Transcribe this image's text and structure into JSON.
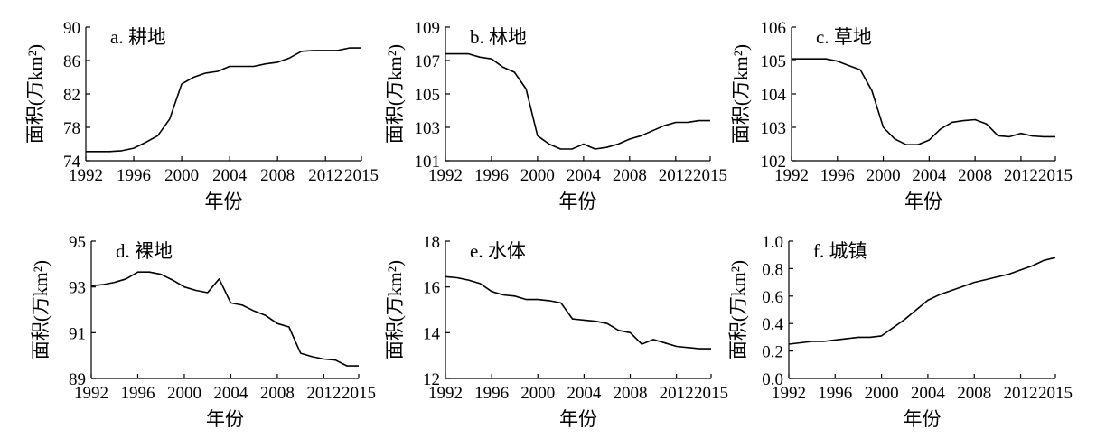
{
  "chart_data": [
    {
      "type": "line",
      "title": "a. 耕地",
      "xlabel": "年份",
      "ylabel": "面积(万km²)",
      "xlim": [
        1992,
        2015
      ],
      "ylim": [
        74,
        90
      ],
      "xticks": [
        "1992",
        "1996",
        "2000",
        "2004",
        "2008",
        "2012",
        "2015"
      ],
      "yticks": [
        "74",
        "78",
        "82",
        "86",
        "90"
      ],
      "series": [
        {
          "x": [
            1992,
            1993,
            1994,
            1995,
            1996,
            1997,
            1998,
            1999,
            2000,
            2001,
            2002,
            2003,
            2004,
            2005,
            2006,
            2007,
            2008,
            2009,
            2010,
            2011,
            2012,
            2013,
            2014,
            2015
          ],
          "values": [
            75.1,
            75.1,
            75.1,
            75.2,
            75.5,
            76.2,
            77.0,
            79.0,
            83.2,
            84.0,
            84.5,
            84.7,
            85.3,
            85.3,
            85.3,
            85.6,
            85.8,
            86.3,
            87.1,
            87.2,
            87.2,
            87.2,
            87.5,
            87.5
          ]
        }
      ]
    },
    {
      "type": "line",
      "title": "b. 林地",
      "xlabel": "年份",
      "ylabel": "面积(万km²)",
      "xlim": [
        1992,
        2015
      ],
      "ylim": [
        101,
        109
      ],
      "xticks": [
        "1992",
        "1996",
        "2000",
        "2004",
        "2008",
        "2012",
        "2015"
      ],
      "yticks": [
        "101",
        "103",
        "105",
        "107",
        "109"
      ],
      "series": [
        {
          "x": [
            1992,
            1993,
            1994,
            1995,
            1996,
            1997,
            1998,
            1999,
            2000,
            2001,
            2002,
            2003,
            2004,
            2005,
            2006,
            2007,
            2008,
            2009,
            2010,
            2011,
            2012,
            2013,
            2014,
            2015
          ],
          "values": [
            107.4,
            107.4,
            107.4,
            107.2,
            107.1,
            106.6,
            106.3,
            105.3,
            102.5,
            102.0,
            101.7,
            101.7,
            102.0,
            101.7,
            101.8,
            102.0,
            102.3,
            102.5,
            102.8,
            103.1,
            103.3,
            103.3,
            103.4,
            103.4
          ]
        }
      ]
    },
    {
      "type": "line",
      "title": "c. 草地",
      "xlabel": "年份",
      "ylabel": "面积(万km²)",
      "xlim": [
        1992,
        2015
      ],
      "ylim": [
        102,
        106
      ],
      "xticks": [
        "1992",
        "1996",
        "2000",
        "2004",
        "2008",
        "2012",
        "2015"
      ],
      "yticks": [
        "102",
        "103",
        "104",
        "105",
        "106"
      ],
      "series": [
        {
          "x": [
            1992,
            1993,
            1994,
            1995,
            1996,
            1997,
            1998,
            1999,
            2000,
            2001,
            2002,
            2003,
            2004,
            2005,
            2006,
            2007,
            2008,
            2009,
            2010,
            2011,
            2012,
            2013,
            2014,
            2015
          ],
          "values": [
            105.05,
            105.05,
            105.05,
            105.05,
            104.98,
            104.85,
            104.72,
            104.1,
            103.0,
            102.65,
            102.48,
            102.48,
            102.62,
            102.95,
            103.15,
            103.2,
            103.23,
            103.1,
            102.75,
            102.72,
            102.82,
            102.74,
            102.72,
            102.72
          ]
        }
      ]
    },
    {
      "type": "line",
      "title": "d. 裸地",
      "xlabel": "年份",
      "ylabel": "面积(万km²)",
      "xlim": [
        1992,
        2015
      ],
      "ylim": [
        89,
        95
      ],
      "xticks": [
        "1992",
        "1996",
        "2000",
        "2004",
        "2008",
        "2012",
        "2015"
      ],
      "yticks": [
        "89",
        "91",
        "93",
        "95"
      ],
      "series": [
        {
          "x": [
            1992,
            1993,
            1994,
            1995,
            1996,
            1997,
            1998,
            1999,
            2000,
            2001,
            2002,
            2003,
            2004,
            2005,
            2006,
            2007,
            2008,
            2009,
            2010,
            2011,
            2012,
            2013,
            2014,
            2015
          ],
          "values": [
            93.05,
            93.1,
            93.2,
            93.35,
            93.65,
            93.65,
            93.55,
            93.3,
            93.0,
            92.85,
            92.75,
            93.35,
            92.3,
            92.2,
            91.95,
            91.75,
            91.4,
            91.25,
            90.1,
            89.95,
            89.85,
            89.8,
            89.55,
            89.55
          ]
        }
      ]
    },
    {
      "type": "line",
      "title": "e. 水体",
      "xlabel": "年份",
      "ylabel": "面积(万km²)",
      "xlim": [
        1992,
        2015
      ],
      "ylim": [
        12,
        18
      ],
      "xticks": [
        "1992",
        "1996",
        "2000",
        "2004",
        "2008",
        "2012",
        "2015"
      ],
      "yticks": [
        "12",
        "14",
        "16",
        "18"
      ],
      "series": [
        {
          "x": [
            1992,
            1993,
            1994,
            1995,
            1996,
            1997,
            1998,
            1999,
            2000,
            2001,
            2002,
            2003,
            2004,
            2005,
            2006,
            2007,
            2008,
            2009,
            2010,
            2011,
            2012,
            2013,
            2014,
            2015
          ],
          "values": [
            16.45,
            16.4,
            16.3,
            16.15,
            15.8,
            15.65,
            15.6,
            15.45,
            15.45,
            15.4,
            15.3,
            14.6,
            14.55,
            14.5,
            14.4,
            14.1,
            14.0,
            13.5,
            13.7,
            13.55,
            13.4,
            13.35,
            13.3,
            13.3
          ]
        }
      ]
    },
    {
      "type": "line",
      "title": "f. 城镇",
      "xlabel": "年份",
      "ylabel": "面积(万km²)",
      "xlim": [
        1992,
        2015
      ],
      "ylim": [
        0.0,
        1.0
      ],
      "xticks": [
        "1992",
        "1996",
        "2000",
        "2004",
        "2008",
        "2012",
        "2015"
      ],
      "yticks": [
        "0.0",
        "0.2",
        "0.4",
        "0.6",
        "0.8",
        "1.0"
      ],
      "series": [
        {
          "x": [
            1992,
            1993,
            1994,
            1995,
            1996,
            1997,
            1998,
            1999,
            2000,
            2001,
            2002,
            2003,
            2004,
            2005,
            2006,
            2007,
            2008,
            2009,
            2010,
            2011,
            2012,
            2013,
            2014,
            2015
          ],
          "values": [
            0.25,
            0.26,
            0.27,
            0.27,
            0.28,
            0.29,
            0.3,
            0.3,
            0.31,
            0.37,
            0.43,
            0.5,
            0.57,
            0.61,
            0.64,
            0.67,
            0.7,
            0.72,
            0.74,
            0.76,
            0.79,
            0.82,
            0.86,
            0.88
          ]
        }
      ]
    }
  ]
}
